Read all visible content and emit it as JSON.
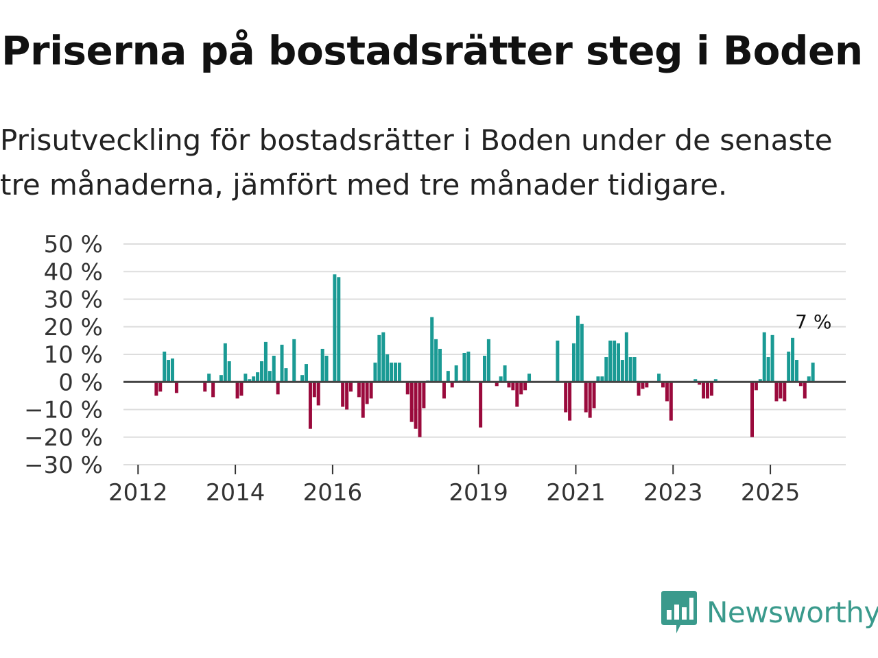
{
  "title": "Priserna på bostadsrätter steg i Boden",
  "subtitle": "Prisutveckling för bostadsrätter i Boden under de senaste tre månaderna, jämfört med tre månader tidigare.",
  "brand": {
    "name": "Newsworthy",
    "color": "#3a9a8c",
    "icon": "newsworthy-logo-icon"
  },
  "colors": {
    "positive": "#1a9a94",
    "negative": "#9a0a3c",
    "grid": "#dddddd",
    "zero": "#444444"
  },
  "chart_data": {
    "type": "bar",
    "title": "Priserna på bostadsrätter steg i Boden",
    "ylabel": "",
    "xlabel": "",
    "ylim": [
      -30,
      50
    ],
    "y_ticks": [
      50,
      40,
      30,
      20,
      10,
      0,
      -10,
      -20,
      -30
    ],
    "y_tick_labels": [
      "50 %",
      "40 %",
      "30 %",
      "20 %",
      "10 %",
      "0 %",
      "−10 %",
      "−20 %",
      "−30 %"
    ],
    "x_ticks": [
      2012,
      2014,
      2016,
      2019,
      2021,
      2023,
      2025
    ],
    "x_range": [
      2011.7,
      2026.55
    ],
    "series": [
      {
        "name": "Prisutveckling",
        "points": [
          [
            2012.375,
            -5
          ],
          [
            2012.458,
            -3.5
          ],
          [
            2012.542,
            11
          ],
          [
            2012.625,
            8
          ],
          [
            2012.708,
            8.5
          ],
          [
            2012.792,
            -4
          ],
          [
            2013.375,
            -3.5
          ],
          [
            2013.458,
            3
          ],
          [
            2013.542,
            -5.5
          ],
          [
            2013.708,
            2.5
          ],
          [
            2013.792,
            14
          ],
          [
            2013.875,
            7.5
          ],
          [
            2014.042,
            -6
          ],
          [
            2014.125,
            -5
          ],
          [
            2014.208,
            3
          ],
          [
            2014.292,
            1
          ],
          [
            2014.375,
            2
          ],
          [
            2014.458,
            3.5
          ],
          [
            2014.542,
            7.5
          ],
          [
            2014.625,
            14.5
          ],
          [
            2014.708,
            4
          ],
          [
            2014.792,
            9.5
          ],
          [
            2014.875,
            -4.5
          ],
          [
            2014.958,
            13.5
          ],
          [
            2015.042,
            5
          ],
          [
            2015.208,
            15.5
          ],
          [
            2015.375,
            2.5
          ],
          [
            2015.458,
            6.5
          ],
          [
            2015.542,
            -17
          ],
          [
            2015.625,
            -5.5
          ],
          [
            2015.708,
            -8.5
          ],
          [
            2015.792,
            12
          ],
          [
            2015.875,
            9.5
          ],
          [
            2016.042,
            39
          ],
          [
            2016.125,
            38
          ],
          [
            2016.208,
            -9
          ],
          [
            2016.292,
            -10
          ],
          [
            2016.375,
            -3.5
          ],
          [
            2016.542,
            -5.5
          ],
          [
            2016.625,
            -13
          ],
          [
            2016.708,
            -8
          ],
          [
            2016.792,
            -6
          ],
          [
            2016.875,
            7
          ],
          [
            2016.958,
            17
          ],
          [
            2017.042,
            18
          ],
          [
            2017.125,
            10
          ],
          [
            2017.208,
            7
          ],
          [
            2017.292,
            7
          ],
          [
            2017.375,
            7
          ],
          [
            2017.542,
            -4.5
          ],
          [
            2017.625,
            -14.5
          ],
          [
            2017.708,
            -17
          ],
          [
            2017.792,
            -20
          ],
          [
            2017.875,
            -9.5
          ],
          [
            2017.958,
            0.5
          ],
          [
            2018.042,
            23.5
          ],
          [
            2018.125,
            15.5
          ],
          [
            2018.208,
            12
          ],
          [
            2018.292,
            -6
          ],
          [
            2018.375,
            4
          ],
          [
            2018.458,
            -2
          ],
          [
            2018.542,
            6
          ],
          [
            2018.625,
            0.5
          ],
          [
            2018.708,
            10.5
          ],
          [
            2018.792,
            11
          ],
          [
            2019.042,
            -16.5
          ],
          [
            2019.125,
            9.5
          ],
          [
            2019.208,
            15.5
          ],
          [
            2019.375,
            -1.5
          ],
          [
            2019.458,
            2
          ],
          [
            2019.542,
            6
          ],
          [
            2019.625,
            -2
          ],
          [
            2019.708,
            -3
          ],
          [
            2019.792,
            -9
          ],
          [
            2019.875,
            -4.5
          ],
          [
            2019.958,
            -3
          ],
          [
            2020.042,
            3
          ],
          [
            2020.625,
            15
          ],
          [
            2020.792,
            -11
          ],
          [
            2020.875,
            -14
          ],
          [
            2020.958,
            14
          ],
          [
            2021.042,
            24
          ],
          [
            2021.125,
            21
          ],
          [
            2021.208,
            -11
          ],
          [
            2021.292,
            -13
          ],
          [
            2021.375,
            -9.5
          ],
          [
            2021.458,
            2
          ],
          [
            2021.542,
            2
          ],
          [
            2021.625,
            9
          ],
          [
            2021.708,
            15
          ],
          [
            2021.792,
            15
          ],
          [
            2021.875,
            14
          ],
          [
            2021.958,
            8
          ],
          [
            2022.042,
            18
          ],
          [
            2022.125,
            9
          ],
          [
            2022.208,
            9
          ],
          [
            2022.292,
            -5
          ],
          [
            2022.375,
            -2.5
          ],
          [
            2022.458,
            -2
          ],
          [
            2022.708,
            3
          ],
          [
            2022.792,
            -2
          ],
          [
            2022.875,
            -7
          ],
          [
            2022.958,
            -14
          ],
          [
            2023.458,
            1
          ],
          [
            2023.542,
            -1
          ],
          [
            2023.625,
            -6
          ],
          [
            2023.708,
            -6
          ],
          [
            2023.792,
            -5
          ],
          [
            2023.875,
            1
          ],
          [
            2024.625,
            -20
          ],
          [
            2024.708,
            -3
          ],
          [
            2024.792,
            1
          ],
          [
            2024.875,
            18
          ],
          [
            2024.958,
            9
          ],
          [
            2025.042,
            17
          ],
          [
            2025.125,
            -7
          ],
          [
            2025.208,
            -6
          ],
          [
            2025.292,
            -7
          ],
          [
            2025.375,
            11
          ],
          [
            2025.458,
            16
          ],
          [
            2025.542,
            8
          ],
          [
            2025.625,
            -1.5
          ],
          [
            2025.708,
            -6
          ],
          [
            2025.792,
            2
          ],
          [
            2025.875,
            7
          ]
        ]
      }
    ],
    "annotation": {
      "text": "7 %",
      "x": 2025.875,
      "y": 7
    }
  }
}
